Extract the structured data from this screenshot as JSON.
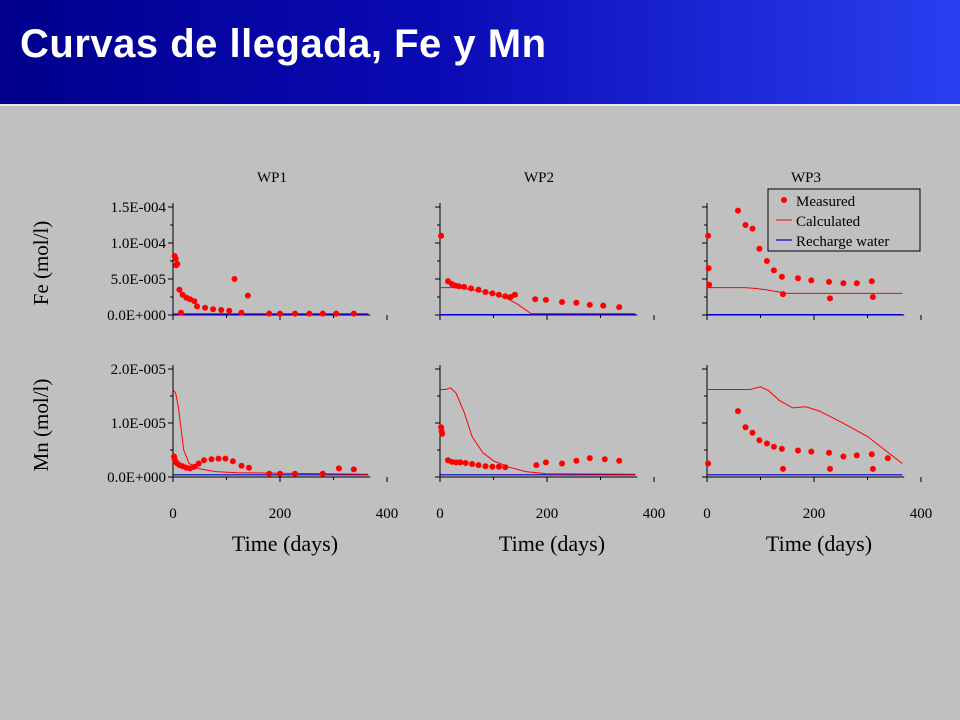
{
  "slide": {
    "title": "Curvas de llegada, Fe y Mn"
  },
  "colors": {
    "measured": "#ff0000",
    "calculated": "#ff0000",
    "recharge": "#0000cc",
    "axis": "#000000",
    "title_bar_start": "#00008c",
    "title_bar_end": "#2a3ff0"
  },
  "legend": {
    "measured": "Measured",
    "calculated": "Calculated",
    "recharge": "Recharge water",
    "placement": "top-right of WP3 Fe panel"
  },
  "chart_data": [
    {
      "id": "fe-wp1",
      "type": "scatter",
      "title": "WP1",
      "xlabel": "",
      "ylabel": "Fe (mol/l)",
      "xlim": [
        0,
        400
      ],
      "ylim": [
        0,
        0.00015
      ],
      "yticks": [
        "0.0E+000",
        "5.0E-005",
        "1.0E-004",
        "1.5E-004"
      ],
      "xticks": [],
      "measured": [
        [
          3,
          8.2e-05
        ],
        [
          5,
          7.8e-05
        ],
        [
          6,
          6.9e-05
        ],
        [
          8,
          7.1e-05
        ],
        [
          12,
          3.5e-05
        ],
        [
          15,
          3e-06
        ],
        [
          18,
          2.8e-05
        ],
        [
          25,
          2.4e-05
        ],
        [
          32,
          2.2e-05
        ],
        [
          40,
          1.9e-05
        ],
        [
          45,
          1.2e-05
        ],
        [
          60,
          1e-05
        ],
        [
          75,
          8e-06
        ],
        [
          90,
          7e-06
        ],
        [
          105,
          6e-06
        ],
        [
          115,
          5e-05
        ],
        [
          128,
          3e-06
        ],
        [
          140,
          2.7e-05
        ],
        [
          180,
          2e-06
        ],
        [
          200,
          2e-06
        ],
        [
          228,
          2e-06
        ],
        [
          255,
          2e-06
        ],
        [
          280,
          2e-06
        ],
        [
          305,
          2e-06
        ],
        [
          338,
          2e-06
        ]
      ],
      "calculated": [
        [
          0,
          2e-06
        ],
        [
          365,
          2e-06
        ]
      ],
      "recharge": [
        [
          0,
          5e-07
        ],
        [
          365,
          5e-07
        ]
      ]
    },
    {
      "id": "fe-wp2",
      "type": "scatter",
      "title": "WP2",
      "xlabel": "",
      "ylabel": "",
      "xlim": [
        0,
        400
      ],
      "ylim": [
        0,
        0.00015
      ],
      "yticks": [],
      "xticks": [],
      "measured": [
        [
          2,
          0.00011
        ],
        [
          15,
          4.7e-05
        ],
        [
          22,
          4.3e-05
        ],
        [
          28,
          4.1e-05
        ],
        [
          35,
          4e-05
        ],
        [
          45,
          3.9e-05
        ],
        [
          58,
          3.7e-05
        ],
        [
          72,
          3.5e-05
        ],
        [
          85,
          3.2e-05
        ],
        [
          98,
          3e-05
        ],
        [
          110,
          2.8e-05
        ],
        [
          122,
          2.6e-05
        ],
        [
          132,
          2.5e-05
        ],
        [
          140,
          2.8e-05
        ],
        [
          178,
          2.2e-05
        ],
        [
          198,
          2.1e-05
        ],
        [
          228,
          1.8e-05
        ],
        [
          255,
          1.7e-05
        ],
        [
          280,
          1.4e-05
        ],
        [
          305,
          1.3e-05
        ],
        [
          335,
          1.1e-05
        ]
      ],
      "calculated": [
        [
          0,
          3.8e-05
        ],
        [
          30,
          3.8e-05
        ],
        [
          60,
          3.5e-05
        ],
        [
          90,
          3.1e-05
        ],
        [
          120,
          2.5e-05
        ],
        [
          145,
          1.5e-05
        ],
        [
          170,
          2e-06
        ],
        [
          200,
          2e-06
        ],
        [
          365,
          2e-06
        ]
      ],
      "recharge": [
        [
          0,
          5e-07
        ],
        [
          365,
          5e-07
        ]
      ]
    },
    {
      "id": "fe-wp3",
      "type": "scatter",
      "title": "WP3",
      "xlabel": "",
      "ylabel": "",
      "xlim": [
        0,
        400
      ],
      "ylim": [
        0,
        0.00015
      ],
      "yticks": [],
      "xticks": [],
      "measured": [
        [
          2,
          0.00011
        ],
        [
          3,
          6.5e-05
        ],
        [
          4,
          4.2e-05
        ],
        [
          58,
          0.000145
        ],
        [
          72,
          0.000125
        ],
        [
          85,
          0.00012
        ],
        [
          98,
          9.2e-05
        ],
        [
          112,
          7.5e-05
        ],
        [
          125,
          6.2e-05
        ],
        [
          140,
          5.3e-05
        ],
        [
          142,
          2.9e-05
        ],
        [
          170,
          5.1e-05
        ],
        [
          195,
          4.8e-05
        ],
        [
          228,
          4.6e-05
        ],
        [
          230,
          2.3e-05
        ],
        [
          255,
          4.4e-05
        ],
        [
          280,
          4.4e-05
        ],
        [
          308,
          4.7e-05
        ],
        [
          310,
          2.5e-05
        ]
      ],
      "calculated": [
        [
          0,
          3.8e-05
        ],
        [
          70,
          3.8e-05
        ],
        [
          90,
          3.7e-05
        ],
        [
          110,
          3.5e-05
        ],
        [
          135,
          3.2e-05
        ],
        [
          150,
          3e-05
        ],
        [
          180,
          3e-05
        ],
        [
          365,
          3e-05
        ]
      ],
      "recharge": [
        [
          0,
          5e-07
        ],
        [
          365,
          5e-07
        ]
      ]
    },
    {
      "id": "mn-wp1",
      "type": "scatter",
      "title": "",
      "xlabel": "Time (days)",
      "ylabel": "Mn (mol/l)",
      "xlim": [
        0,
        400
      ],
      "ylim": [
        0,
        2e-05
      ],
      "yticks": [
        "0.0E+000",
        "1.0E-005",
        "2.0E-005"
      ],
      "xticks": [
        "0",
        "200",
        "400"
      ],
      "measured": [
        [
          2,
          3.8e-06
        ],
        [
          3,
          3.3e-06
        ],
        [
          5,
          2.8e-06
        ],
        [
          8,
          2.5e-06
        ],
        [
          12,
          2.2e-06
        ],
        [
          18,
          2e-06
        ],
        [
          25,
          1.7e-06
        ],
        [
          32,
          1.6e-06
        ],
        [
          40,
          1.9e-06
        ],
        [
          48,
          2.5e-06
        ],
        [
          58,
          3.1e-06
        ],
        [
          72,
          3.3e-06
        ],
        [
          85,
          3.4e-06
        ],
        [
          98,
          3.4e-06
        ],
        [
          112,
          2.9e-06
        ],
        [
          128,
          2.1e-06
        ],
        [
          142,
          1.7e-06
        ],
        [
          180,
          6e-07
        ],
        [
          200,
          6e-07
        ],
        [
          228,
          6e-07
        ],
        [
          280,
          6e-07
        ],
        [
          310,
          1.6e-06
        ],
        [
          338,
          1.4e-06
        ]
      ],
      "calculated": [
        [
          0,
          1.62e-05
        ],
        [
          5,
          1.55e-05
        ],
        [
          10,
          1.3e-05
        ],
        [
          15,
          9e-06
        ],
        [
          20,
          5e-06
        ],
        [
          30,
          2.5e-06
        ],
        [
          50,
          1.5e-06
        ],
        [
          80,
          1e-06
        ],
        [
          120,
          8e-07
        ],
        [
          365,
          5e-07
        ]
      ],
      "recharge": [
        [
          0,
          4e-07
        ],
        [
          365,
          4e-07
        ]
      ]
    },
    {
      "id": "mn-wp2",
      "type": "scatter",
      "title": "",
      "xlabel": "Time (days)",
      "ylabel": "",
      "xlim": [
        0,
        400
      ],
      "ylim": [
        0,
        2e-05
      ],
      "yticks": [],
      "xticks": [
        "0",
        "200",
        "400"
      ],
      "measured": [
        [
          2,
          9.2e-06
        ],
        [
          3,
          8.5e-06
        ],
        [
          4,
          8e-06
        ],
        [
          15,
          3.1e-06
        ],
        [
          22,
          2.8e-06
        ],
        [
          30,
          2.7e-06
        ],
        [
          38,
          2.7e-06
        ],
        [
          48,
          2.6e-06
        ],
        [
          60,
          2.4e-06
        ],
        [
          72,
          2.2e-06
        ],
        [
          85,
          2e-06
        ],
        [
          98,
          1.9e-06
        ],
        [
          110,
          1.9e-06
        ],
        [
          122,
          1.8e-06
        ],
        [
          180,
          2.2e-06
        ],
        [
          198,
          2.7e-06
        ],
        [
          228,
          2.5e-06
        ],
        [
          255,
          3e-06
        ],
        [
          280,
          3.5e-06
        ],
        [
          308,
          3.3e-06
        ],
        [
          335,
          3e-06
        ]
      ],
      "calculated": [
        [
          0,
          1.62e-05
        ],
        [
          10,
          1.62e-05
        ],
        [
          20,
          1.65e-05
        ],
        [
          30,
          1.55e-05
        ],
        [
          45,
          1.2e-05
        ],
        [
          60,
          7.5e-06
        ],
        [
          80,
          4.5e-06
        ],
        [
          100,
          3e-06
        ],
        [
          130,
          1.8e-06
        ],
        [
          160,
          1e-06
        ],
        [
          200,
          6e-07
        ],
        [
          365,
          5e-07
        ]
      ],
      "recharge": [
        [
          0,
          4e-07
        ],
        [
          365,
          4e-07
        ]
      ]
    },
    {
      "id": "mn-wp3",
      "type": "scatter",
      "title": "",
      "xlabel": "Time (days)",
      "ylabel": "",
      "xlim": [
        0,
        400
      ],
      "ylim": [
        0,
        2e-05
      ],
      "yticks": [],
      "xticks": [
        "0",
        "200",
        "400"
      ],
      "measured": [
        [
          2,
          2.5e-06
        ],
        [
          58,
          1.22e-05
        ],
        [
          72,
          9.2e-06
        ],
        [
          85,
          8.2e-06
        ],
        [
          98,
          6.8e-06
        ],
        [
          112,
          6.2e-06
        ],
        [
          125,
          5.6e-06
        ],
        [
          140,
          5.2e-06
        ],
        [
          142,
          1.5e-06
        ],
        [
          170,
          4.9e-06
        ],
        [
          195,
          4.7e-06
        ],
        [
          228,
          4.5e-06
        ],
        [
          230,
          1.5e-06
        ],
        [
          255,
          3.8e-06
        ],
        [
          280,
          4e-06
        ],
        [
          308,
          4.2e-06
        ],
        [
          310,
          1.5e-06
        ],
        [
          338,
          3.5e-06
        ]
      ],
      "calculated": [
        [
          0,
          1.62e-05
        ],
        [
          80,
          1.62e-05
        ],
        [
          100,
          1.67e-05
        ],
        [
          115,
          1.6e-05
        ],
        [
          135,
          1.42e-05
        ],
        [
          160,
          1.28e-05
        ],
        [
          185,
          1.3e-05
        ],
        [
          210,
          1.22e-05
        ],
        [
          250,
          1.02e-05
        ],
        [
          300,
          7.5e-06
        ],
        [
          365,
          2.5e-06
        ]
      ],
      "recharge": [
        [
          0,
          4e-07
        ],
        [
          365,
          4e-07
        ]
      ]
    }
  ]
}
